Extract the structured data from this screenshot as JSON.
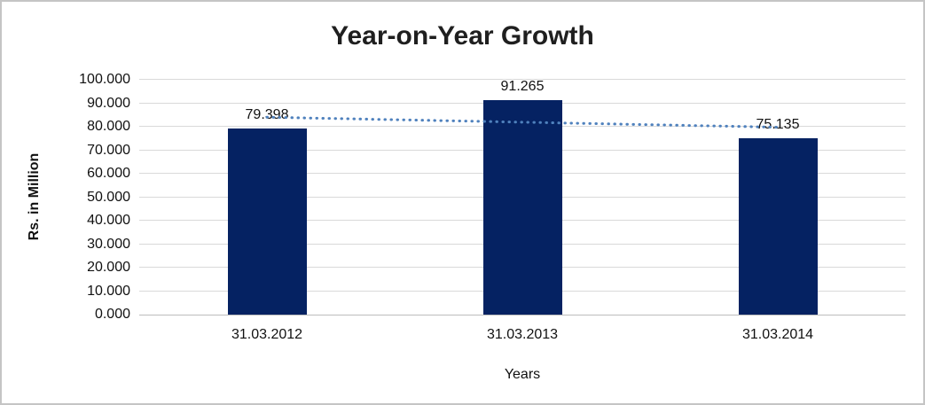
{
  "chart_data": {
    "type": "bar",
    "title": "Year-on-Year Growth",
    "xlabel": "Years",
    "ylabel": "Rs. in Million",
    "categories": [
      "31.03.2012",
      "31.03.2013",
      "31.03.2014"
    ],
    "values": [
      79.398,
      91.265,
      75.135
    ],
    "value_labels": [
      "79.398",
      "91.265",
      "75.135"
    ],
    "ylim": [
      0,
      100
    ],
    "ytick_step": 10,
    "ytick_labels": [
      "0.000",
      "10.000",
      "20.000",
      "30.000",
      "40.000",
      "50.000",
      "60.000",
      "70.000",
      "80.000",
      "90.000",
      "100.000"
    ],
    "grid": "horizontal",
    "legend": "none",
    "trendline": {
      "type": "linear",
      "style": "dotted"
    },
    "colors": {
      "bar": "#052262",
      "trendline": "#4f81bd",
      "gridline": "#d9d9d9",
      "axis_line": "#bdbdbd",
      "text": "#111111",
      "title": "#1f1f1f",
      "frame_border": "#c5c5c5"
    }
  }
}
